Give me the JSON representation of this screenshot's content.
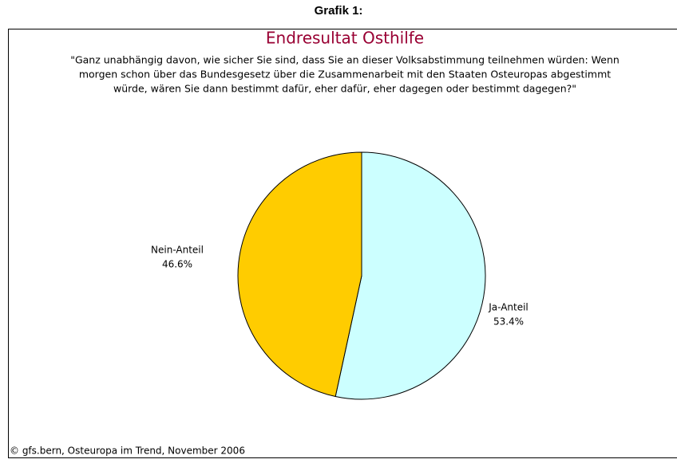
{
  "header": "Grafik 1:",
  "chart_data": {
    "type": "pie",
    "title": "Endresultat Osthilfe",
    "subtitle": [
      "\"Ganz unabhängig davon, wie sicher Sie sind, dass Sie an dieser Volksabstimmung teilnehmen würden: Wenn",
      "morgen schon über das Bundesgesetz über die Zusammenarbeit mit den Staaten Osteuropas abgestimmt",
      "würde, wären Sie dann bestimmt dafür, eher dafür, eher dagegen oder bestimmt dagegen?\""
    ],
    "categories": [
      "Ja-Anteil",
      "Nein-Anteil"
    ],
    "values": [
      53.4,
      46.6
    ],
    "value_labels": [
      "53.4%",
      "46.6%"
    ],
    "colors": [
      "#ccffff",
      "#ffcc00"
    ],
    "source": "© gfs.bern, Osteuropa im Trend, November 2006"
  }
}
